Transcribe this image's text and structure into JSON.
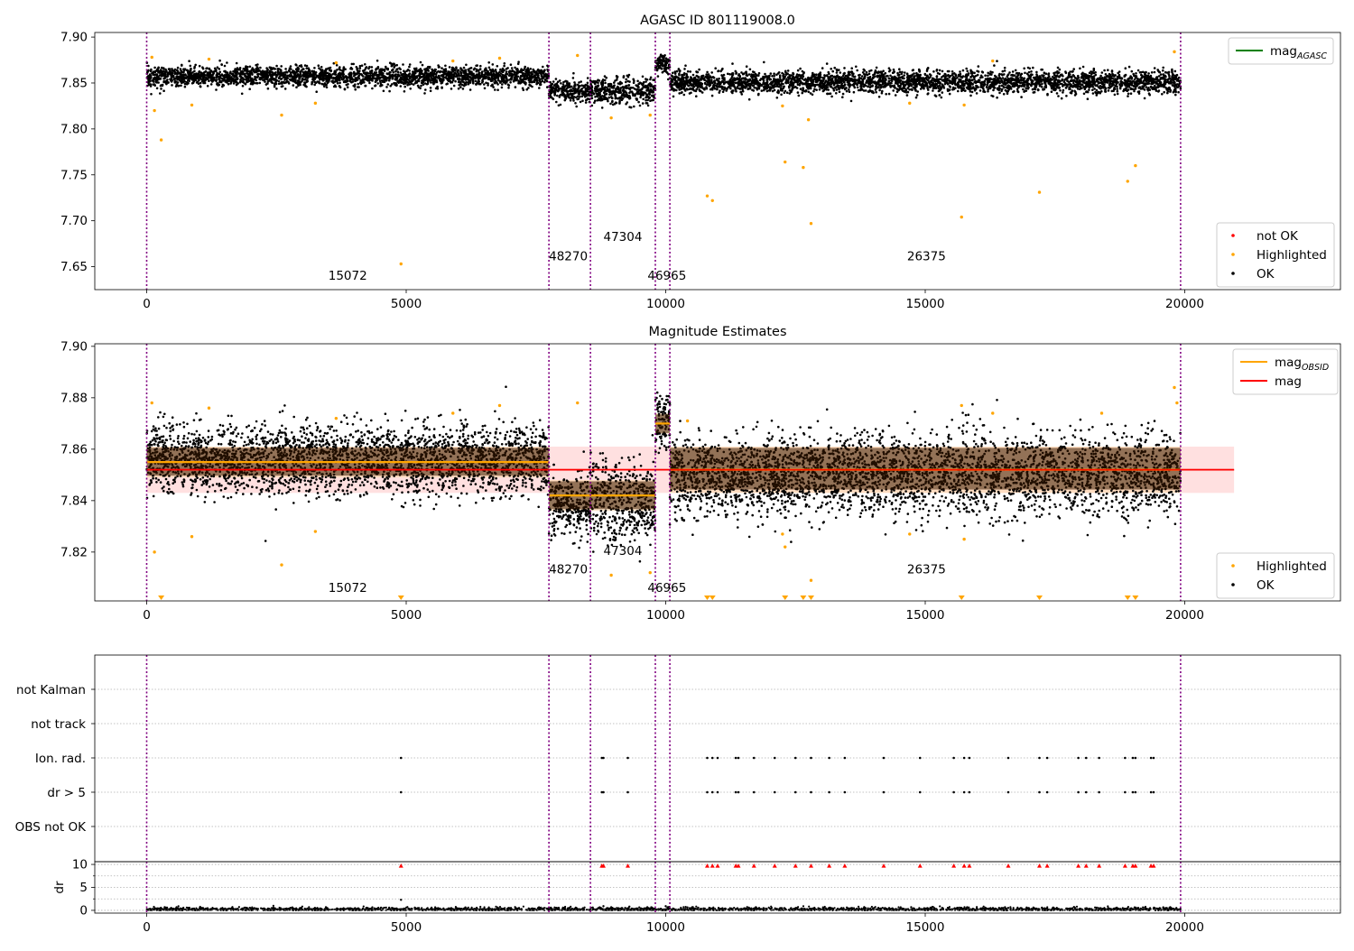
{
  "figure": {
    "colors": {
      "ok": "#000000",
      "highlighted": "#ffa500",
      "not_ok": "#ff0000",
      "agasc_line": "#008000",
      "mag_line": "#ff0000",
      "mag_band": "#ffd6d6",
      "obsid_line": "#ffa500",
      "obsid_band": "#ffdcb4",
      "vline": "#800080",
      "grid": "#b0b0b0"
    }
  },
  "chart_data": [
    {
      "id": "agasc",
      "type": "scatter",
      "title": "AGASC ID 801119008.0",
      "xlabel": "",
      "ylabel": "",
      "xlim": [
        -1000,
        23000
      ],
      "ylim": [
        7.625,
        7.905
      ],
      "xticks": [
        0,
        5000,
        10000,
        15000,
        20000
      ],
      "yticks": [
        7.65,
        7.7,
        7.75,
        7.8,
        7.85,
        7.9
      ],
      "ytick_labels": [
        "7.65",
        "7.70",
        "7.75",
        "7.80",
        "7.85",
        "7.90"
      ],
      "obsid_boundaries": [
        0,
        7750,
        8550,
        9800,
        10080,
        19920
      ],
      "obsid_labels": [
        {
          "text": "15072",
          "x": 3500,
          "y": 7.636
        },
        {
          "text": "48270",
          "x": 7750,
          "y": 7.657
        },
        {
          "text": "47304",
          "x": 8800,
          "y": 7.678
        },
        {
          "text": "46965",
          "x": 9650,
          "y": 7.636
        },
        {
          "text": "26375",
          "x": 14650,
          "y": 7.657
        }
      ],
      "series": [
        {
          "name": "OK",
          "color": "#000000",
          "band_segments": [
            {
              "x0": 0,
              "x1": 7750,
              "center": 7.857,
              "half_width": 0.01
            },
            {
              "x0": 7750,
              "x1": 8550,
              "center": 7.841,
              "half_width": 0.01
            },
            {
              "x0": 8550,
              "x1": 9800,
              "center": 7.841,
              "half_width": 0.013
            },
            {
              "x0": 9800,
              "x1": 10080,
              "center": 7.871,
              "half_width": 0.01
            },
            {
              "x0": 10080,
              "x1": 19920,
              "center": 7.851,
              "half_width": 0.011
            }
          ]
        },
        {
          "name": "Highlighted",
          "color": "#ffa500",
          "points": [
            [
              100,
              7.878
            ],
            [
              150,
              7.82
            ],
            [
              280,
              7.788
            ],
            [
              870,
              7.826
            ],
            [
              1200,
              7.876
            ],
            [
              2600,
              7.815
            ],
            [
              3250,
              7.828
            ],
            [
              3650,
              7.872
            ],
            [
              4900,
              7.653
            ],
            [
              5900,
              7.874
            ],
            [
              6800,
              7.877
            ],
            [
              8300,
              7.88
            ],
            [
              8950,
              7.812
            ],
            [
              9700,
              7.815
            ],
            [
              10800,
              7.727
            ],
            [
              10900,
              7.722
            ],
            [
              12250,
              7.825
            ],
            [
              12300,
              7.764
            ],
            [
              12650,
              7.758
            ],
            [
              12750,
              7.81
            ],
            [
              12800,
              7.697
            ],
            [
              14700,
              7.828
            ],
            [
              15700,
              7.704
            ],
            [
              15750,
              7.826
            ],
            [
              16300,
              7.874
            ],
            [
              17200,
              7.731
            ],
            [
              18900,
              7.743
            ],
            [
              19050,
              7.76
            ],
            [
              19800,
              7.884
            ]
          ]
        },
        {
          "name": "not OK",
          "color": "#ff0000",
          "points": []
        }
      ],
      "lines": [
        {
          "name": "mag_AGASC",
          "color": "#008000",
          "y": null
        }
      ],
      "legend_upper": [
        {
          "label": "mag",
          "sub": "AGASC",
          "kind": "line",
          "color": "#008000"
        }
      ],
      "legend_lower": [
        {
          "label": "not OK",
          "kind": "marker",
          "color": "#ff0000"
        },
        {
          "label": "Highlighted",
          "kind": "marker",
          "color": "#ffa500"
        },
        {
          "label": "OK",
          "kind": "marker",
          "color": "#000000"
        }
      ]
    },
    {
      "id": "estimates",
      "type": "scatter",
      "title": "Magnitude Estimates",
      "xlabel": "",
      "ylabel": "",
      "xlim": [
        -1000,
        23000
      ],
      "ylim": [
        7.801,
        7.901
      ],
      "xticks": [
        0,
        5000,
        10000,
        15000,
        20000
      ],
      "yticks": [
        7.82,
        7.84,
        7.86,
        7.88,
        7.9
      ],
      "ytick_labels": [
        "7.82",
        "7.84",
        "7.86",
        "7.88",
        "7.90"
      ],
      "obsid_boundaries": [
        0,
        7750,
        8550,
        9800,
        10080,
        19920
      ],
      "obsid_labels": [
        {
          "text": "15072",
          "x": 3500,
          "y": 7.8045
        },
        {
          "text": "48270",
          "x": 7750,
          "y": 7.8117
        },
        {
          "text": "47304",
          "x": 8800,
          "y": 7.8189
        },
        {
          "text": "46965",
          "x": 9650,
          "y": 7.8045
        },
        {
          "text": "26375",
          "x": 14650,
          "y": 7.8117
        }
      ],
      "mag": {
        "value": 7.852,
        "lo": 7.843,
        "hi": 7.861,
        "x0": 0,
        "x1": 20950
      },
      "mag_obsid": [
        {
          "x0": 0,
          "x1": 7750,
          "value": 7.855,
          "lo": 7.849,
          "hi": 7.861
        },
        {
          "x0": 7750,
          "x1": 9800,
          "value": 7.842,
          "lo": 7.836,
          "hi": 7.848
        },
        {
          "x0": 9800,
          "x1": 10080,
          "value": 7.87,
          "lo": 7.866,
          "hi": 7.874
        },
        {
          "x0": 10080,
          "x1": 19920,
          "value": 7.852,
          "lo": 7.843,
          "hi": 7.861
        }
      ],
      "series": [
        {
          "name": "OK",
          "color": "#000000",
          "band_segments": [
            {
              "x0": 0,
              "x1": 7750,
              "center": 7.856,
              "half_width": 0.012
            },
            {
              "x0": 7750,
              "x1": 8550,
              "center": 7.838,
              "half_width": 0.01
            },
            {
              "x0": 8550,
              "x1": 9800,
              "center": 7.84,
              "half_width": 0.014
            },
            {
              "x0": 9800,
              "x1": 10080,
              "center": 7.871,
              "half_width": 0.01
            },
            {
              "x0": 10080,
              "x1": 19920,
              "center": 7.85,
              "half_width": 0.014
            }
          ]
        },
        {
          "name": "Highlighted",
          "color": "#ffa500",
          "points": [
            [
              100,
              7.878
            ],
            [
              150,
              7.82
            ],
            [
              870,
              7.826
            ],
            [
              1200,
              7.876
            ],
            [
              2600,
              7.815
            ],
            [
              3250,
              7.828
            ],
            [
              3650,
              7.872
            ],
            [
              5900,
              7.874
            ],
            [
              6800,
              7.877
            ],
            [
              8300,
              7.878
            ],
            [
              8950,
              7.811
            ],
            [
              9700,
              7.812
            ],
            [
              10420,
              7.871
            ],
            [
              12250,
              7.827
            ],
            [
              12300,
              7.822
            ],
            [
              12800,
              7.809
            ],
            [
              14700,
              7.827
            ],
            [
              15700,
              7.877
            ],
            [
              15750,
              7.825
            ],
            [
              16300,
              7.874
            ],
            [
              18400,
              7.874
            ],
            [
              19800,
              7.884
            ],
            [
              19850,
              7.878
            ]
          ]
        },
        {
          "name": "Highlighted (clipped)",
          "color": "#ffa500",
          "marker": "triangle-down",
          "points": [
            [
              280,
              7.8012
            ],
            [
              4900,
              7.8012
            ],
            [
              10800,
              7.8012
            ],
            [
              10900,
              7.8012
            ],
            [
              12300,
              7.8012
            ],
            [
              12650,
              7.8012
            ],
            [
              12800,
              7.8012
            ],
            [
              15700,
              7.8012
            ],
            [
              17200,
              7.8012
            ],
            [
              18900,
              7.8012
            ],
            [
              19050,
              7.8012
            ]
          ]
        }
      ],
      "legend_upper": [
        {
          "label": "mag",
          "sub": "OBSID",
          "kind": "line",
          "color": "#ffa500"
        },
        {
          "label": "mag",
          "sub": "",
          "kind": "line",
          "color": "#ff0000"
        }
      ],
      "legend_lower": [
        {
          "label": "Highlighted",
          "kind": "marker",
          "color": "#ffa500"
        },
        {
          "label": "OK",
          "kind": "marker",
          "color": "#000000"
        }
      ]
    },
    {
      "id": "flags",
      "type": "scatter",
      "title": "",
      "xlabel": "",
      "ylabel": "",
      "xlim": [
        -1000,
        23000
      ],
      "categories": [
        "not Kalman",
        "not track",
        "Ion. rad.",
        "dr > 5",
        "OBS not OK"
      ],
      "obsid_boundaries": [
        0,
        7750,
        8550,
        9800,
        10080,
        19920
      ],
      "series": [
        {
          "name": "Ion. rad.",
          "color": "#000000",
          "x": [
            4900,
            8770,
            8800,
            9270,
            10800,
            10900,
            11000,
            11350,
            11400,
            11700,
            12100,
            12500,
            12800,
            13150,
            13450,
            14200,
            14900,
            15550,
            15750,
            15850,
            16600,
            17200,
            17350,
            17950,
            18100,
            18350,
            18850,
            19000,
            19050,
            19350,
            19400
          ]
        },
        {
          "name": "dr > 5",
          "color": "#000000",
          "x": [
            4900,
            8770,
            8800,
            9270,
            10800,
            10900,
            11000,
            11350,
            11400,
            11700,
            12100,
            12500,
            12800,
            13150,
            13450,
            14200,
            14900,
            15550,
            15750,
            15850,
            16600,
            17200,
            17350,
            17950,
            18100,
            18350,
            18850,
            19000,
            19050,
            19350,
            19400
          ]
        }
      ]
    },
    {
      "id": "dr",
      "type": "scatter",
      "title": "",
      "xlabel": "",
      "ylabel": "dr",
      "xlim": [
        -1000,
        23000
      ],
      "ylim": [
        -0.6,
        10.6
      ],
      "xticks": [
        0,
        5000,
        10000,
        15000,
        20000
      ],
      "yticks": [
        0,
        5,
        10
      ],
      "ytick_labels": [
        "0",
        "5",
        "10"
      ],
      "obsid_boundaries": [
        0,
        7750,
        8550,
        9800,
        10080,
        19920
      ],
      "series": [
        {
          "name": "dr",
          "color": "#000000",
          "band": {
            "x0": 0,
            "x1": 19920,
            "lo": 0.0,
            "hi": 0.6
          },
          "points": [
            [
              4900,
              2.3
            ],
            [
              8800,
              0.9
            ],
            [
              9300,
              0.8
            ],
            [
              10000,
              0.9
            ]
          ]
        },
        {
          "name": "dr clipped",
          "color": "#ff0000",
          "marker": "triangle-up",
          "x": [
            4900,
            8770,
            8800,
            9270,
            10800,
            10900,
            11000,
            11350,
            11400,
            11700,
            12100,
            12500,
            12800,
            13150,
            13450,
            14200,
            14900,
            15550,
            15750,
            15850,
            16600,
            17200,
            17350,
            17950,
            18100,
            18350,
            18850,
            19000,
            19050,
            19350,
            19400
          ],
          "y": 9.8
        }
      ]
    }
  ]
}
